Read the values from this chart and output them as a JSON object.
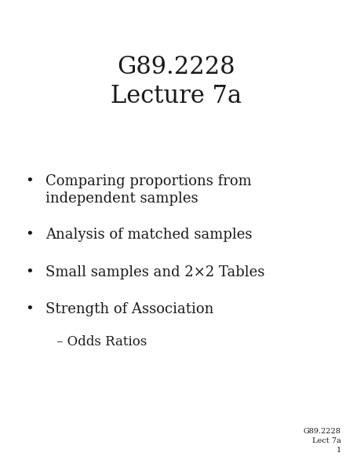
{
  "title_line1": "G89.2228",
  "title_line2": "Lecture 7a",
  "bullet_items": [
    "Comparing proportions from\nindependent samples",
    "Analysis of matched samples",
    "Small samples and 2×2 Tables",
    "Strength of Association"
  ],
  "sub_item": "– Odds Ratios",
  "footer_line1": "G89.2228",
  "footer_line2": "Lect 7a",
  "footer_line3": "1",
  "bg_color": "#ffffff",
  "text_color": "#1a1a1a",
  "title_fontsize": 22,
  "bullet_fontsize": 13,
  "sub_fontsize": 12,
  "footer_fontsize": 7
}
